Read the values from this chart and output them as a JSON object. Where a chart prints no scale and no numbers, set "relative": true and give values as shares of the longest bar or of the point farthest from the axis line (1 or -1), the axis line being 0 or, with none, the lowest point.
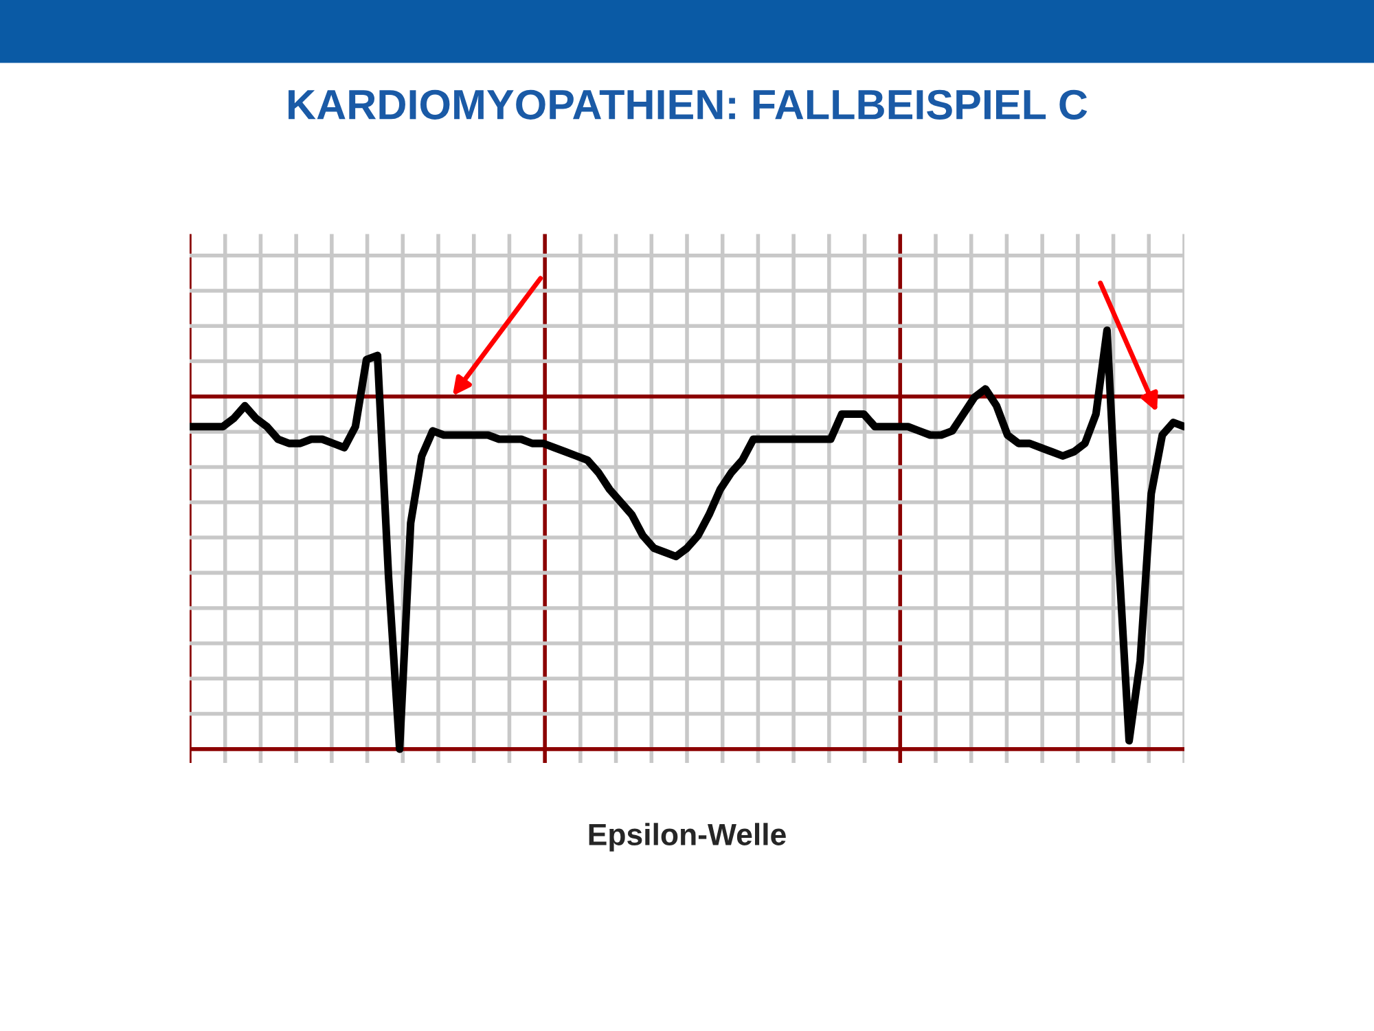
{
  "chart_data": {
    "type": "line",
    "title": "KARDIOMYOPATHIEN: FALLBEISPIEL C",
    "relative": true,
    "grid": true,
    "marker": "none",
    "line_style": "solid",
    "annotations": [
      "Epsilon-Welle"
    ],
    "categories": [
      null,
      null,
      null,
      null,
      null,
      null,
      null,
      null,
      null,
      null,
      null,
      null,
      null,
      null,
      null,
      null,
      null,
      null,
      null,
      null,
      null,
      null,
      null,
      null,
      null,
      null,
      null,
      null,
      null,
      null,
      null,
      null,
      null,
      null,
      null,
      null,
      null,
      null,
      null,
      null,
      null,
      null,
      null,
      null,
      null,
      null,
      null,
      null,
      null,
      null,
      null,
      null,
      null,
      null,
      null,
      null,
      null,
      null,
      null,
      null,
      null,
      null,
      null,
      null,
      null,
      null,
      null,
      null,
      null,
      null,
      null,
      null,
      null,
      null,
      null,
      null,
      null,
      null,
      null,
      null,
      null,
      null,
      null,
      null,
      null,
      null,
      null,
      null,
      null,
      null,
      null
    ],
    "series": [
      {
        "color": "#000000",
        "values": [
          0.77,
          0.77,
          0.77,
          0.77,
          0.79,
          0.82,
          0.79,
          0.77,
          0.74,
          0.73,
          0.73,
          0.74,
          0.74,
          0.73,
          0.72,
          0.77,
          0.93,
          0.94,
          0.41,
          0,
          0.54,
          0.7,
          0.76,
          0.75,
          0.75,
          0.75,
          0.75,
          0.75,
          0.74,
          0.74,
          0.74,
          0.73,
          0.73,
          0.72,
          0.71,
          0.7,
          0.69,
          0.66,
          0.62,
          0.59,
          0.56,
          0.51,
          0.48,
          0.47,
          0.46,
          0.48,
          0.51,
          0.56,
          0.62,
          0.66,
          0.69,
          0.74,
          0.74,
          0.74,
          0.74,
          0.74,
          0.74,
          0.74,
          0.74,
          0.8,
          0.8,
          0.8,
          0.77,
          0.77,
          0.77,
          0.77,
          0.76,
          0.75,
          0.75,
          0.76,
          0.8,
          0.84,
          0.86,
          0.82,
          0.75,
          0.73,
          0.73,
          0.72,
          0.71,
          0.7,
          0.71,
          0.73,
          0.8,
          1,
          0.48,
          0.02,
          0.21,
          0.61,
          0.75,
          0.78,
          0.77
        ]
      }
    ]
  }
}
